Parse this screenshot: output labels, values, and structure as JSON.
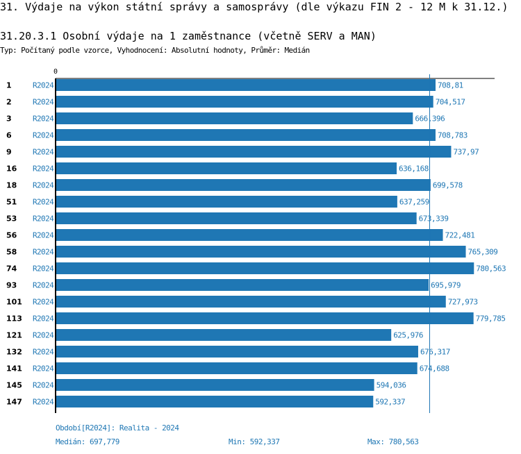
{
  "title": "31. Výdaje na výkon státní správy a samosprávy (dle výkazu FIN 2 - 12 M k 31.12.)",
  "subtitle": "31.20.3.1 Osobní výdaje na 1 zaměstnance (včetně SERV a MAN)",
  "description": "Typ: Počítaný podle vzorce, Vyhodnocení: Absolutní hodnoty, Průměr: Medián",
  "chart_data": {
    "type": "bar",
    "orientation": "horizontal",
    "x_tick_labels": [
      "0"
    ],
    "categories": [
      "1",
      "2",
      "3",
      "6",
      "9",
      "16",
      "18",
      "51",
      "53",
      "56",
      "58",
      "74",
      "93",
      "101",
      "113",
      "121",
      "132",
      "141",
      "145",
      "147"
    ],
    "series_label": "R2024",
    "values": [
      708.81,
      704.517,
      666.396,
      708.783,
      737.97,
      636.168,
      699.578,
      637.259,
      673.339,
      722.481,
      765.309,
      780.563,
      695.979,
      727.973,
      779.785,
      625.976,
      676.317,
      674.688,
      594.036,
      592.337
    ],
    "value_labels": [
      "708,81",
      "704,517",
      "666,396",
      "708,783",
      "737,97",
      "636,168",
      "699,578",
      "637,259",
      "673,339",
      "722,481",
      "765,309",
      "780,563",
      "695,979",
      "727,973",
      "779,785",
      "625,976",
      "676,317",
      "674,688",
      "594,036",
      "592,337"
    ],
    "median": 697.779,
    "bar_color": "#1f77b4",
    "text_color": "#1f77b4"
  },
  "footer": {
    "period": "Období[R2024]: Realita - 2024",
    "median": "Medián: 697,779",
    "min": "Min: 592,337",
    "max": "Max: 780,563"
  }
}
